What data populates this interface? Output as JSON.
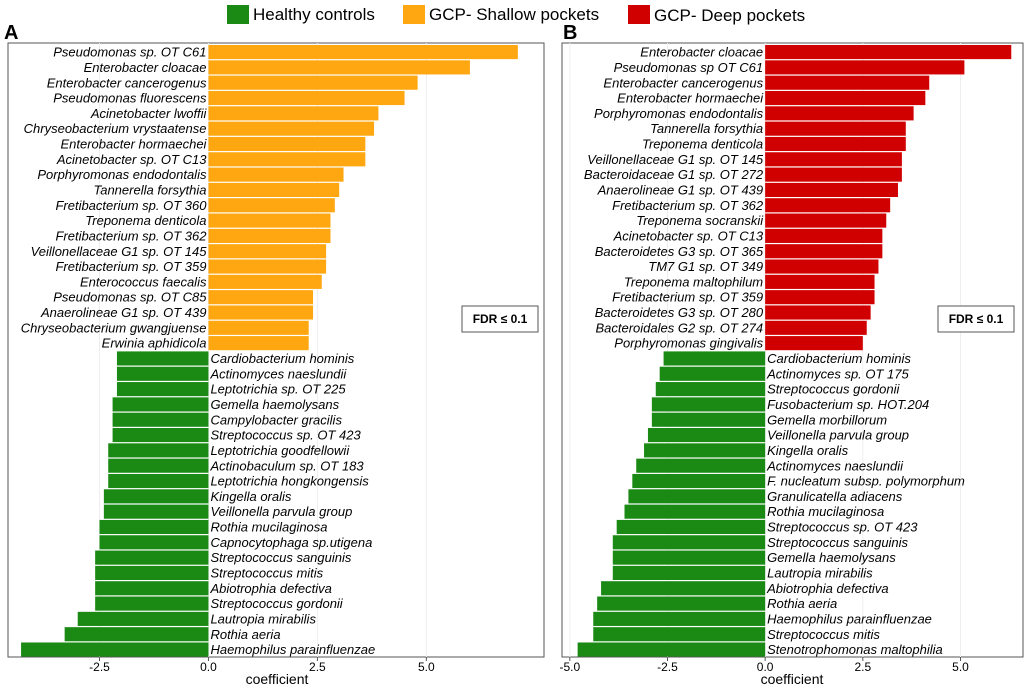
{
  "legend": {
    "items": [
      {
        "label": "Healthy controls",
        "color": "#1a8a14"
      },
      {
        "label": "GCP- Shallow pockets",
        "color": "#ffa710"
      },
      {
        "label": "GCP- Deep pockets",
        "color": "#d10000"
      }
    ]
  },
  "chart_data": [
    {
      "type": "bar",
      "orientation": "horizontal",
      "panel": "A",
      "xlabel": "coefficient",
      "xlim": [
        -4.6,
        7.7
      ],
      "xticks": [
        -2.5,
        0.0,
        2.5,
        5.0
      ],
      "xtick_labels": [
        "-2.5",
        "0.0",
        "2.5",
        "5.0"
      ],
      "annotation": "FDR ≤ 0.1",
      "positive_color": "#ffa710",
      "negative_color": "#1a8a14",
      "categories": [
        "Pseudomonas sp. OT C61",
        "Enterobacter cloacae",
        "Enterobacter cancerogenus",
        "Pseudomonas fluorescens",
        "Acinetobacter lwoffii",
        "Chryseobacterium vrystaatense",
        "Enterobacter hormaechei",
        "Acinetobacter sp. OT C13",
        "Porphyromonas endodontalis",
        "Tannerella forsythia",
        "Fretibacterium sp. OT 360",
        "Treponema denticola",
        "Fretibacterium sp. OT 362",
        "Veillonellaceae  G1 sp. OT 145",
        "Fretibacterium sp. OT 359",
        "Enterococcus faecalis",
        "Pseudomonas sp. OT C85",
        "Anaerolineae  G1 sp. OT 439",
        "Chryseobacterium gwangjuense",
        "Erwinia aphidicola",
        "Cardiobacterium hominis",
        "Actinomyces naeslundii",
        "Leptotrichia sp. OT 225",
        "Gemella haemolysans",
        "Campylobacter gracilis",
        "Streptococcus sp. OT 423",
        "Leptotrichia goodfellowii",
        "Actinobaculum sp. OT 183",
        "Leptotrichia hongkongensis",
        "Kingella oralis",
        "Veillonella parvula group",
        "Rothia mucilaginosa",
        "Capnocytophaga sp.utigena",
        "Streptococcus sanguinis",
        "Streptococcus mitis",
        "Abiotrophia defectiva",
        "Streptococcus gordonii",
        "Lautropia mirabilis",
        "Rothia aeria",
        "Haemophilus parainfluenzae"
      ],
      "values": [
        7.1,
        6.0,
        4.8,
        4.5,
        3.9,
        3.8,
        3.6,
        3.6,
        3.1,
        3.0,
        2.9,
        2.8,
        2.8,
        2.7,
        2.7,
        2.6,
        2.4,
        2.4,
        2.3,
        2.3,
        -2.1,
        -2.1,
        -2.1,
        -2.2,
        -2.2,
        -2.2,
        -2.3,
        -2.3,
        -2.3,
        -2.4,
        -2.4,
        -2.5,
        -2.5,
        -2.6,
        -2.6,
        -2.6,
        -2.6,
        -3.0,
        -3.3,
        -4.3
      ]
    },
    {
      "type": "bar",
      "orientation": "horizontal",
      "panel": "B",
      "xlabel": "coefficient",
      "xlim": [
        -5.2,
        6.6
      ],
      "xticks": [
        -5.0,
        -2.5,
        0.0,
        2.5,
        5.0
      ],
      "xtick_labels": [
        "-5.0",
        "-2.5",
        "0.0",
        "2.5",
        "5.0"
      ],
      "annotation": "FDR ≤ 0.1",
      "positive_color": "#d10000",
      "negative_color": "#1a8a14",
      "categories": [
        "Enterobacter cloacae",
        "Pseudomonas sp  OT C61",
        "Enterobacter cancerogenus",
        "Enterobacter hormaechei",
        "Porphyromonas endodontalis",
        "Tannerella forsythia",
        "Treponema denticola",
        "Veillonellaceae G1 sp. OT 145",
        "Bacteroidaceae G1 sp. OT 272",
        "Anaerolineae G1 sp. OT 439",
        "Fretibacterium sp. OT 362",
        "Treponema socranskii",
        "Acinetobacter sp. OT C13",
        "Bacteroidetes G3 sp. OT 365",
        "TM7 G1 sp. OT 349",
        "Treponema maltophilum",
        "Fretibacterium sp. OT 359",
        "Bacteroidetes G3 sp. OT 280",
        "Bacteroidales G2 sp. OT 274",
        "Porphyromonas gingivalis",
        "Cardiobacterium hominis",
        "Actinomyces sp. OT 175",
        "Streptococcus gordonii",
        "Fusobacterium sp. HOT.204",
        "Gemella morbillorum",
        "Veillonella parvula group",
        "Kingella oralis",
        "Actinomyces naeslundii",
        "F. nucleatum subsp. polymorphum",
        "Granulicatella adiacens",
        "Rothia mucilaginosa",
        "Streptococcus sp. OT 423",
        "Streptococcus sanguinis",
        "Gemella haemolysans",
        "Lautropia mirabilis",
        "Abiotrophia defectiva",
        "Rothia aeria",
        "Haemophilus parainfluenzae",
        "Streptococcus mitis",
        "Stenotrophomonas maltophilia"
      ],
      "values": [
        6.3,
        5.1,
        4.2,
        4.1,
        3.8,
        3.6,
        3.6,
        3.5,
        3.5,
        3.4,
        3.2,
        3.1,
        3.0,
        3.0,
        2.9,
        2.8,
        2.8,
        2.7,
        2.6,
        2.5,
        -2.6,
        -2.7,
        -2.8,
        -2.9,
        -2.9,
        -3.0,
        -3.1,
        -3.3,
        -3.4,
        -3.5,
        -3.6,
        -3.8,
        -3.9,
        -3.9,
        -3.9,
        -4.2,
        -4.3,
        -4.4,
        -4.4,
        -4.8
      ]
    }
  ]
}
